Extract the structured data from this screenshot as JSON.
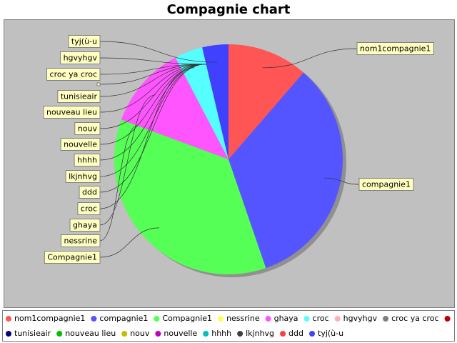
{
  "chart_data": {
    "type": "pie",
    "title": "Compagnie chart",
    "categories": [
      "nom1compagnie1",
      "compagnie1",
      "Compagnie1",
      "nessrine",
      "ghaya",
      "croc",
      "hgvyhgv",
      "croc ya croc",
      null,
      "tunisieair",
      "nouveau lieu",
      "nouv",
      "nouvelle",
      "hhhh",
      "lkjnhvg",
      "ddd",
      "tyj(ù-u"
    ],
    "values": [
      11.4,
      33.3,
      35.9,
      0,
      11.7,
      4,
      0,
      0,
      0,
      0,
      0,
      0,
      0,
      0,
      0,
      0,
      3.7
    ],
    "colors": [
      "#ff5555",
      "#5555ff",
      "#55ff55",
      "#ffff55",
      "#ff55ff",
      "#55ffff",
      "#ffafaf",
      "#808080",
      "#c00000",
      "#000080",
      "#00c000",
      "#c0c000",
      "#c000c0",
      "#00c0c0",
      "#404040",
      "#ff4040",
      "#4040ff"
    ],
    "legend": "bottom"
  }
}
